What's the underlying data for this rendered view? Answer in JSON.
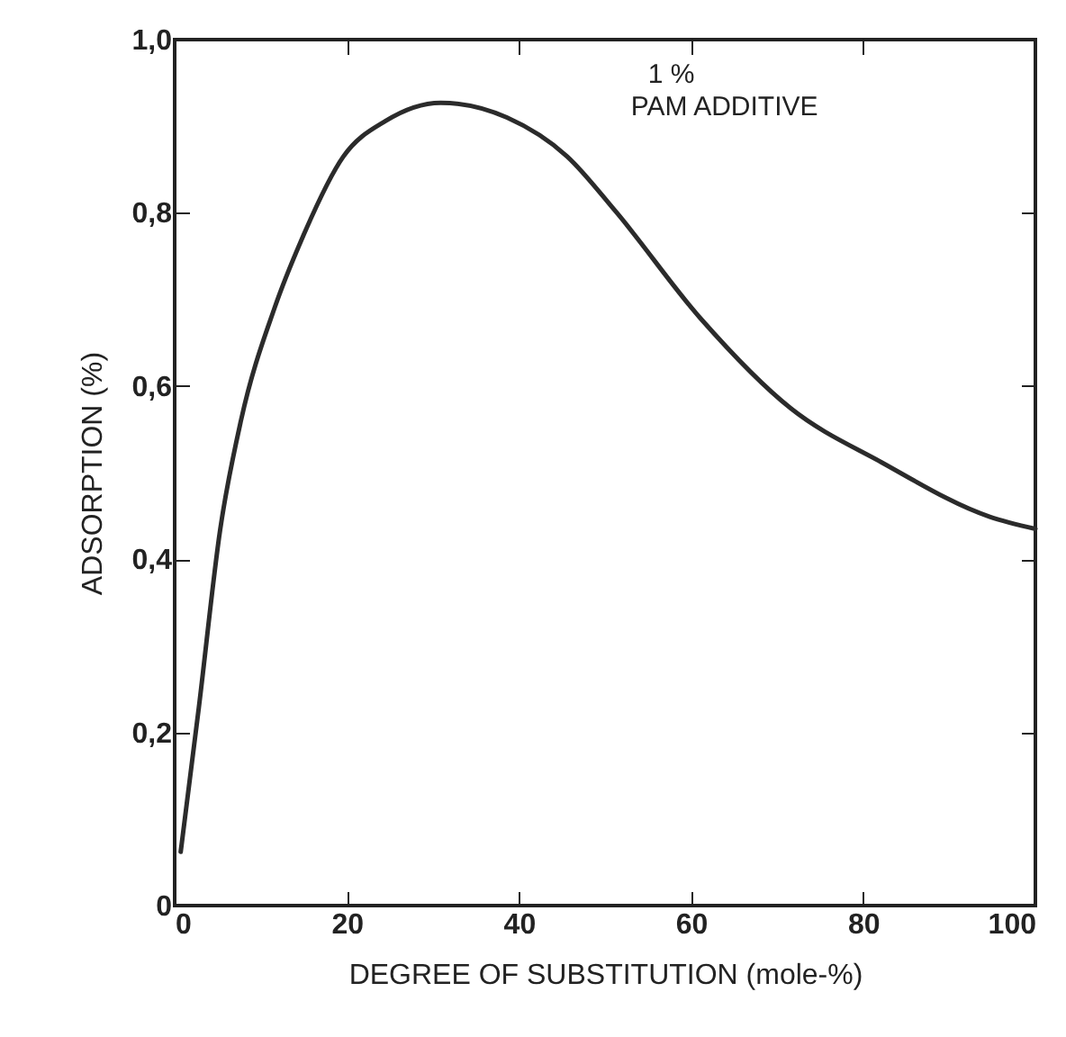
{
  "chart_data": {
    "type": "line",
    "xlabel": "DEGREE OF SUBSTITUTION (mole-%)",
    "ylabel": "ADSORPTION (%)",
    "annotations": [
      "1 %",
      "PAM ADDITIVE"
    ],
    "x": [
      0.7,
      2.8,
      5.3,
      7.7,
      11.6,
      14.7,
      19.6,
      24.5,
      30.9,
      38.6,
      45.6,
      51.2,
      61.1,
      71.6,
      82.1,
      94.7,
      100
    ],
    "series": [
      {
        "color": "#2b2b2b",
        "values": [
          0.062,
          0.228,
          0.435,
          0.56,
          0.69,
          0.768,
          0.865,
          0.906,
          0.927,
          0.91,
          0.865,
          0.802,
          0.678,
          0.574,
          0.512,
          0.449,
          0.435
        ]
      }
    ],
    "xlim": [
      0,
      100
    ],
    "xticks": [
      0,
      20,
      40,
      60,
      80,
      100
    ],
    "ylim": [
      0,
      1.0
    ],
    "yticks": [
      0,
      {
        "value": 0.2,
        "label": "0,2"
      },
      {
        "value": 0.4,
        "label": "0,4"
      },
      {
        "value": 0.6,
        "label": "0,6"
      },
      {
        "value": 0.8,
        "label": "0,8"
      },
      {
        "value": 1.0,
        "label": "1,0"
      }
    ],
    "grid": false,
    "legend": false,
    "marker": "none",
    "line_style": "solid"
  }
}
